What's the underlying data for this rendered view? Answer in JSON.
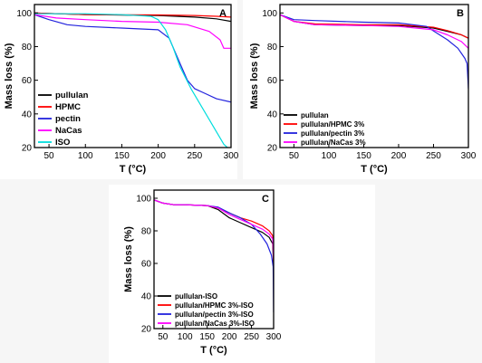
{
  "chart_data": [
    {
      "panel": "A",
      "type": "line",
      "xlabel": "T (°C)",
      "ylabel": "Mass loss (%)",
      "xlim": [
        30,
        300
      ],
      "ylim": [
        20,
        105
      ],
      "xticks": [
        50,
        100,
        150,
        200,
        250,
        300
      ],
      "yticks": [
        20,
        40,
        60,
        80,
        100
      ],
      "grid": false,
      "legend_position": "bottom-left",
      "series": [
        {
          "name": "pullulan",
          "color": "#000000",
          "x": [
            30,
            100,
            200,
            250,
            280,
            300
          ],
          "y": [
            100,
            99,
            98.5,
            97.5,
            96.5,
            95
          ]
        },
        {
          "name": "HPMC",
          "color": "#ff0000",
          "x": [
            30,
            100,
            200,
            250,
            280,
            300
          ],
          "y": [
            100,
            99,
            98.8,
            98.5,
            98,
            97.5
          ]
        },
        {
          "name": "pectin",
          "color": "#2222dd",
          "x": [
            30,
            50,
            75,
            100,
            150,
            200,
            215,
            230,
            240,
            250,
            265,
            280,
            300
          ],
          "y": [
            99,
            96,
            93,
            92,
            91,
            90,
            85,
            70,
            60,
            55,
            52,
            49,
            47
          ]
        },
        {
          "name": "NaCas",
          "color": "#ff00ff",
          "x": [
            30,
            60,
            100,
            150,
            200,
            240,
            270,
            285,
            290,
            300
          ],
          "y": [
            99,
            97,
            96,
            95,
            94.5,
            93,
            89,
            84,
            79,
            79
          ]
        },
        {
          "name": "ISO",
          "color": "#00dddd",
          "x": [
            30,
            100,
            150,
            190,
            200,
            210,
            220,
            230,
            245,
            260,
            275,
            290,
            295
          ],
          "y": [
            99.5,
            99.5,
            99,
            98,
            96,
            90,
            80,
            68,
            55,
            44,
            33,
            22,
            20
          ]
        }
      ]
    },
    {
      "panel": "B",
      "type": "line",
      "xlabel": "T (°C)",
      "ylabel": "Mass loss (%)",
      "xlim": [
        30,
        300
      ],
      "ylim": [
        20,
        105
      ],
      "xticks": [
        50,
        100,
        150,
        200,
        250,
        300
      ],
      "yticks": [
        20,
        40,
        60,
        80,
        100
      ],
      "grid": false,
      "legend_position": "bottom-left",
      "series": [
        {
          "name": "pullulan",
          "color": "#000000",
          "x": [
            30,
            50,
            80,
            150,
            200,
            250,
            270,
            290,
            300
          ],
          "y": [
            99,
            95,
            93,
            92.5,
            92.5,
            91,
            89,
            87,
            85
          ]
        },
        {
          "name": "pullulan/HPMC 3%",
          "color": "#ff0000",
          "x": [
            30,
            50,
            80,
            150,
            200,
            250,
            270,
            290,
            300
          ],
          "y": [
            99,
            95,
            93.5,
            93,
            93,
            91.5,
            89.5,
            87,
            85
          ]
        },
        {
          "name": "pullulan/pectin 3%",
          "color": "#2222dd",
          "x": [
            30,
            50,
            80,
            150,
            200,
            240,
            255,
            270,
            285,
            295,
            298,
            300
          ],
          "y": [
            99,
            96,
            95.5,
            94.5,
            94,
            92,
            88,
            84,
            79,
            73,
            70,
            55
          ]
        },
        {
          "name": "pullulan/NaCas 3%",
          "color": "#ff00ff",
          "x": [
            30,
            50,
            80,
            150,
            200,
            250,
            270,
            290,
            300
          ],
          "y": [
            99,
            95,
            93,
            92.5,
            92,
            90,
            87,
            83,
            79
          ]
        }
      ]
    },
    {
      "panel": "C",
      "type": "line",
      "xlabel": "T (°C)",
      "ylabel": "Mass loss (%)",
      "xlim": [
        30,
        300
      ],
      "ylim": [
        20,
        105
      ],
      "xticks": [
        50,
        100,
        150,
        200,
        250,
        300
      ],
      "yticks": [
        20,
        40,
        60,
        80,
        100
      ],
      "grid": false,
      "legend_position": "bottom-left",
      "series": [
        {
          "name": "pullulan-ISO",
          "color": "#000000",
          "x": [
            30,
            50,
            75,
            100,
            150,
            175,
            200,
            225,
            250,
            275,
            290,
            298,
            300
          ],
          "y": [
            99,
            97,
            96,
            96,
            95.5,
            93,
            88,
            85,
            82,
            79,
            76,
            72,
            58
          ]
        },
        {
          "name": "pullulan/HPMC 3%-ISO",
          "color": "#ff0000",
          "x": [
            30,
            50,
            75,
            100,
            150,
            175,
            200,
            225,
            250,
            275,
            290,
            298,
            300
          ],
          "y": [
            99,
            97,
            96,
            96,
            95.5,
            94,
            91,
            88,
            86,
            83,
            80,
            77,
            60
          ]
        },
        {
          "name": "pullulan/pectin 3%-ISO",
          "color": "#2222dd",
          "x": [
            30,
            50,
            75,
            100,
            150,
            175,
            200,
            225,
            250,
            270,
            285,
            295,
            299,
            300
          ],
          "y": [
            99,
            97,
            96,
            96,
            95.5,
            94.5,
            91,
            88,
            84,
            78,
            72,
            65,
            58,
            30
          ]
        },
        {
          "name": "pullulan/NaCas 3%-ISO",
          "color": "#ff00ff",
          "x": [
            30,
            50,
            75,
            100,
            150,
            175,
            200,
            225,
            250,
            275,
            290,
            298,
            300
          ],
          "y": [
            99,
            97,
            96,
            96,
            95.5,
            94,
            90,
            87,
            84,
            81,
            78,
            75,
            62
          ]
        }
      ]
    }
  ]
}
